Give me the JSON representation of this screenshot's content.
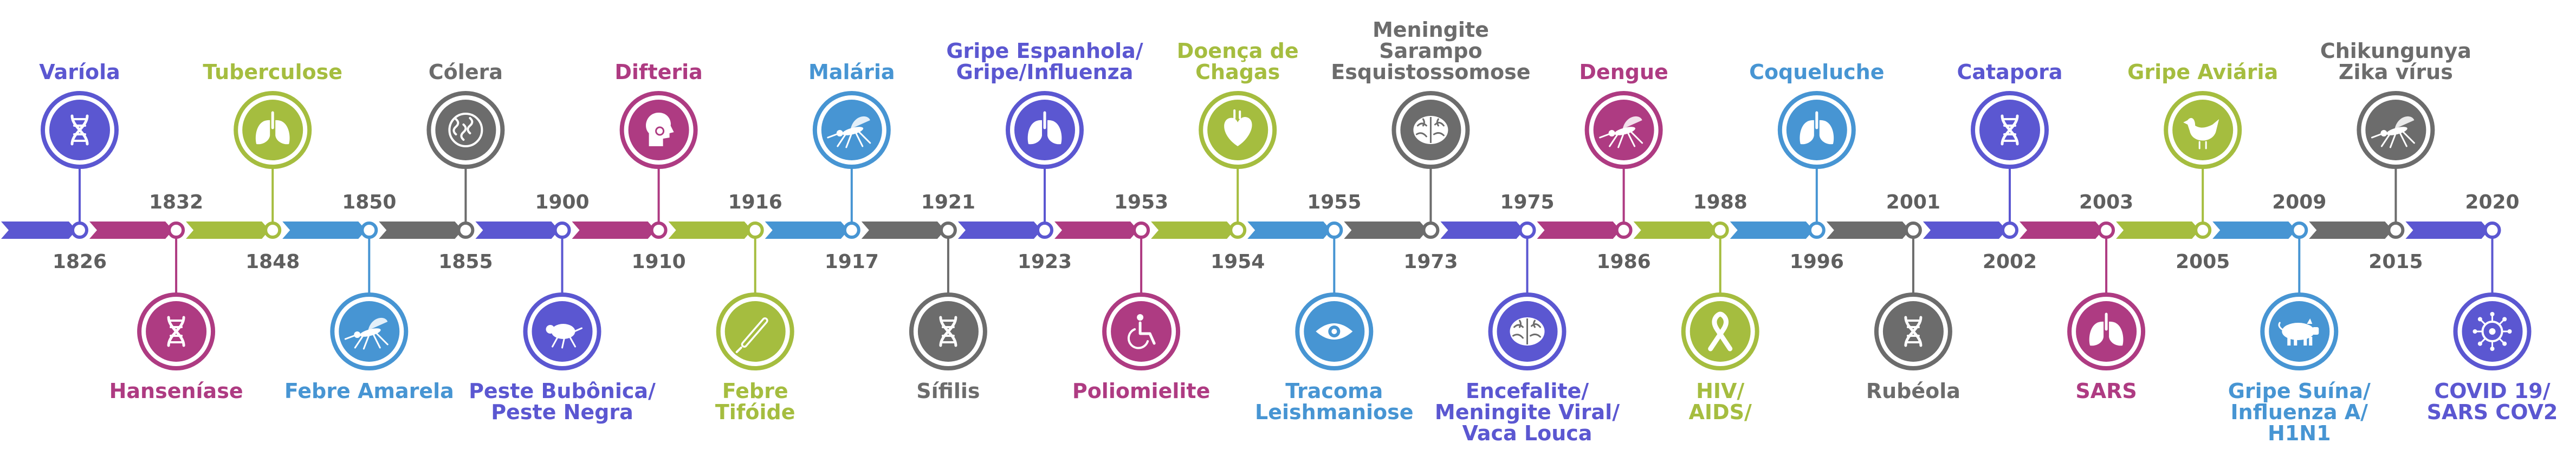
{
  "colors": {
    "purple": "#5b57d1",
    "magenta": "#ae3b82",
    "green": "#a5bd3f",
    "blue": "#4795d3",
    "gray": "#6c6c6c"
  },
  "events": [
    {
      "year": "1826",
      "label": [
        "Varíola"
      ],
      "color": "purple",
      "icon": "dna-icon"
    },
    {
      "year": "1832",
      "label": [
        "Hanseníase"
      ],
      "color": "magenta",
      "icon": "dna-icon"
    },
    {
      "year": "1848",
      "label": [
        "Tuberculose"
      ],
      "color": "green",
      "icon": "lungs-icon"
    },
    {
      "year": "1850",
      "label": [
        "Febre Amarela"
      ],
      "color": "blue",
      "icon": "mosquito-icon"
    },
    {
      "year": "1855",
      "label": [
        "Cólera"
      ],
      "color": "gray",
      "icon": "bacteria-icon"
    },
    {
      "year": "1900",
      "label": [
        "Peste Bubônica/",
        "Peste Negra"
      ],
      "color": "purple",
      "icon": "flea-icon"
    },
    {
      "year": "1910",
      "label": [
        "Difteria"
      ],
      "color": "magenta",
      "icon": "throat-icon"
    },
    {
      "year": "1916",
      "label": [
        "Febre",
        "Tifóide"
      ],
      "color": "green",
      "icon": "thermometer-icon"
    },
    {
      "year": "1917",
      "label": [
        "Malária"
      ],
      "color": "blue",
      "icon": "mosquito-icon"
    },
    {
      "year": "1921",
      "label": [
        "Sífilis"
      ],
      "color": "gray",
      "icon": "dna-icon"
    },
    {
      "year": "1923",
      "label": [
        "Gripe Espanhola/",
        "Gripe/Influenza"
      ],
      "color": "purple",
      "icon": "lungs-icon"
    },
    {
      "year": "1953",
      "label": [
        "Poliomielite"
      ],
      "color": "magenta",
      "icon": "wheelchair-icon"
    },
    {
      "year": "1954",
      "label": [
        "Doença de",
        "Chagas"
      ],
      "color": "green",
      "icon": "heart-icon"
    },
    {
      "year": "1955",
      "label": [
        "Tracoma",
        "Leishmaniose"
      ],
      "color": "blue",
      "icon": "eye-icon"
    },
    {
      "year": "1973",
      "label": [
        "Meningite",
        "Sarampo",
        "Esquistossomose"
      ],
      "color": "gray",
      "icon": "brain-icon"
    },
    {
      "year": "1975",
      "label": [
        "Encefalite/",
        "Meningite Viral/",
        "Vaca Louca"
      ],
      "color": "purple",
      "icon": "brain-icon"
    },
    {
      "year": "1986",
      "label": [
        "Dengue"
      ],
      "color": "magenta",
      "icon": "mosquito-icon"
    },
    {
      "year": "1988",
      "label": [
        "HIV/",
        "AIDS/"
      ],
      "color": "green",
      "icon": "ribbon-icon"
    },
    {
      "year": "1996",
      "label": [
        "Coqueluche"
      ],
      "color": "blue",
      "icon": "lungs-icon"
    },
    {
      "year": "2001",
      "label": [
        "Rubéola"
      ],
      "color": "gray",
      "icon": "dna-icon"
    },
    {
      "year": "2002",
      "label": [
        "Catapora"
      ],
      "color": "purple",
      "icon": "dna-icon"
    },
    {
      "year": "2003",
      "label": [
        "SARS"
      ],
      "color": "magenta",
      "icon": "lungs-icon"
    },
    {
      "year": "2005",
      "label": [
        "Gripe Aviária"
      ],
      "color": "green",
      "icon": "chicken-icon"
    },
    {
      "year": "2009",
      "label": [
        "Gripe Suína/",
        "Influenza A/",
        "H1N1"
      ],
      "color": "blue",
      "icon": "pig-icon"
    },
    {
      "year": "2015",
      "label": [
        "Chikungunya",
        "Zika vírus"
      ],
      "color": "gray",
      "icon": "mosquito-icon"
    },
    {
      "year": "2020",
      "label": [
        "COVID 19/",
        "SARS COV2"
      ],
      "color": "purple",
      "icon": "virus-icon"
    }
  ]
}
